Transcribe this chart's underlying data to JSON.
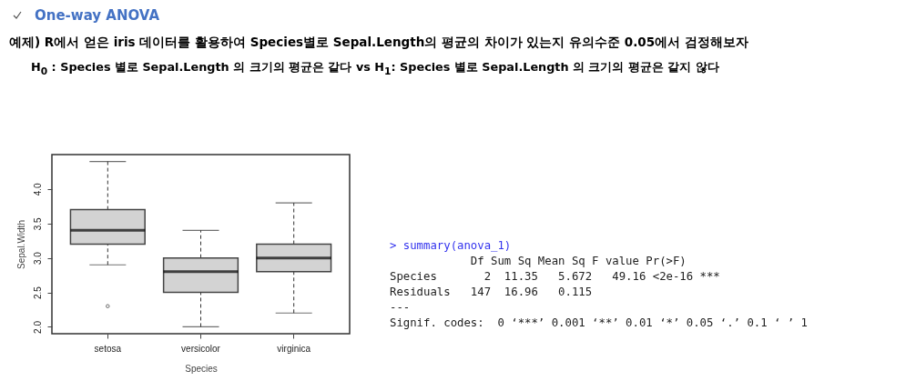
{
  "chart_data": {
    "type": "box",
    "title": "One-way ANOVA",
    "subtitle": "예제) R에서 얻은 iris 데이터를 활용하여 Species별로 Sepal.Length의 평균의 차이가 있는지 유의수준 0.05에서 검정해보자",
    "annotations": [
      "H$_{0}$ : Species 별로 Sepal.Length 의 크기의 평균은 같다 vs H$_{1}$: Species 별로 Sepal.Length 의 크기의 평균은 같지 않다",
      "> summary(anova_1)",
      "            Df Sum Sq Mean Sq F value Pr(>F)",
      "Species       2  11.35   5.672   49.16 <2e-16 ***",
      "Residuals   147  16.96   0.115",
      "---",
      "Signif. codes:  0 ‘***’ 0.001 ‘**’ 0.01 ‘*’ 0.05 ‘.’ 0.1 ‘ ’ 1"
    ],
    "xlabel": "Species",
    "ylabel": "Sepal.Width",
    "categories": [
      "setosa",
      "versicolor",
      "virginica"
    ],
    "boxes": [
      {
        "low": 2.9,
        "q1": 3.2,
        "median": 3.4,
        "q3": 3.7,
        "high": 4.4,
        "outliers": [
          2.3
        ]
      },
      {
        "low": 2.0,
        "q1": 2.5,
        "median": 2.8,
        "q3": 3.0,
        "high": 3.4
      },
      {
        "low": 2.2,
        "q1": 2.8,
        "median": 3.0,
        "q3": 3.2,
        "high": 3.8
      }
    ],
    "color": "#d3d3d3",
    "ylim": [
      1.9,
      4.5
    ],
    "yticks": [
      {
        "value": 2,
        "label": "2.0"
      },
      {
        "value": 2.5,
        "label": "2.5"
      },
      {
        "value": 3,
        "label": "3.0"
      },
      {
        "value": 3.5,
        "label": "3.5"
      },
      {
        "value": 4,
        "label": "4.0"
      }
    ],
    "grid": false
  }
}
